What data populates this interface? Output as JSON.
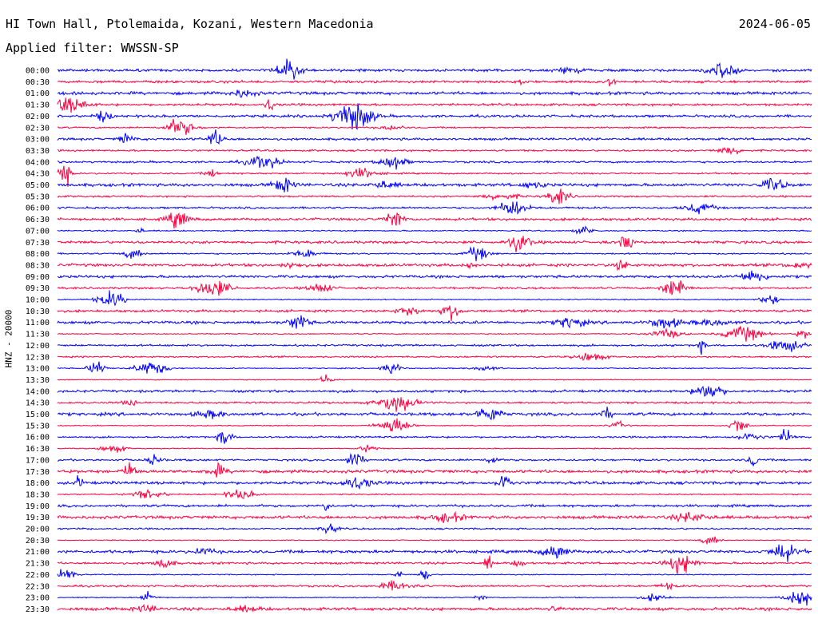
{
  "header": {
    "station": "HI Town Hall, Ptolemaida, Kozani, Western Macedonia",
    "date": "2024-06-05",
    "filter": "Applied filter: WWSSN-SP"
  },
  "colors": {
    "odd": "#0000ff",
    "even": "#ff0040"
  },
  "chart_data": {
    "type": "line",
    "title": "HI Town Hall, Ptolemaida, Kozani, Western Macedonia",
    "ylabel": "HNZ - 20000",
    "rows": [
      "00:00",
      "00:30",
      "01:00",
      "01:30",
      "02:00",
      "02:30",
      "03:00",
      "03:30",
      "04:00",
      "04:30",
      "05:00",
      "05:30",
      "06:00",
      "06:30",
      "07:00",
      "07:30",
      "08:00",
      "08:30",
      "09:00",
      "09:30",
      "10:00",
      "10:30",
      "11:00",
      "11:30",
      "12:00",
      "12:30",
      "13:00",
      "13:30",
      "14:00",
      "14:30",
      "15:00",
      "15:30",
      "16:00",
      "16:30",
      "17:00",
      "17:30",
      "18:00",
      "18:30",
      "19:00",
      "19:30",
      "20:00",
      "20:30",
      "21:00",
      "21:30",
      "22:00",
      "22:30",
      "23:00",
      "23:30"
    ],
    "grid": false,
    "legend": "none"
  }
}
